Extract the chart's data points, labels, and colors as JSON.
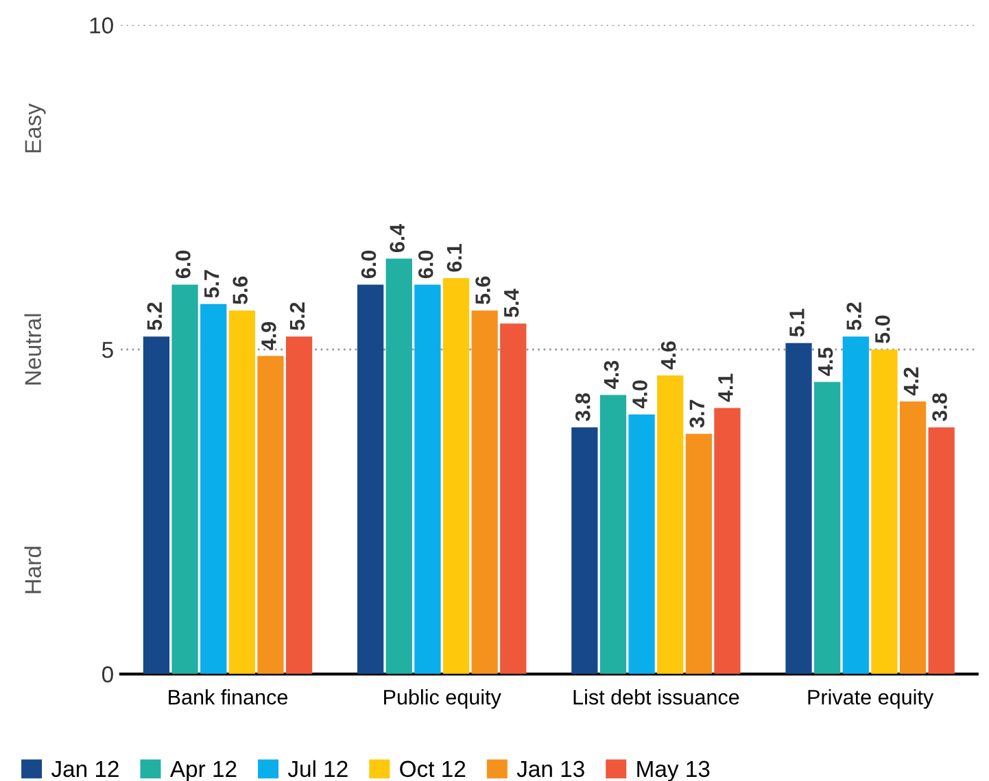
{
  "chart_data": {
    "type": "bar",
    "categories": [
      "Bank finance",
      "Public equity",
      "List debt issuance",
      "Private equity"
    ],
    "series": [
      {
        "name": "Jan 12",
        "color": "#17498a",
        "values": [
          5.2,
          6.0,
          3.8,
          5.1
        ],
        "value_labels": [
          "5.2",
          "6.0",
          "3.8",
          "5.1"
        ]
      },
      {
        "name": "Apr 12",
        "color": "#22b0a2",
        "values": [
          6.0,
          6.4,
          4.3,
          4.5
        ],
        "value_labels": [
          "6.0",
          "6.4",
          "4.3",
          "4.5"
        ]
      },
      {
        "name": "Jul 12",
        "color": "#0aaeea",
        "values": [
          5.7,
          6.0,
          4.0,
          5.2
        ],
        "value_labels": [
          "5.7",
          "6.0",
          "4.0",
          "5.2"
        ]
      },
      {
        "name": "Oct 12",
        "color": "#fec80c",
        "values": [
          5.6,
          6.1,
          4.6,
          5.0
        ],
        "value_labels": [
          "5.6",
          "6.1",
          "4.6",
          "5.0"
        ]
      },
      {
        "name": "Jan 13",
        "color": "#f5921e",
        "values": [
          4.9,
          5.6,
          3.7,
          4.2
        ],
        "value_labels": [
          "4.9",
          "5.6",
          "3.7",
          "4.2"
        ]
      },
      {
        "name": "May 13",
        "color": "#ef583b",
        "values": [
          5.2,
          5.4,
          4.1,
          3.8
        ],
        "value_labels": [
          "5.2",
          "5.4",
          "4.1",
          "3.8"
        ]
      }
    ],
    "ylim": [
      0,
      10
    ],
    "yticks": [
      0,
      5,
      10
    ],
    "annotations": [
      "Easy",
      "Neutral",
      "Hard"
    ],
    "grid": "y",
    "legend": "bottom left"
  }
}
